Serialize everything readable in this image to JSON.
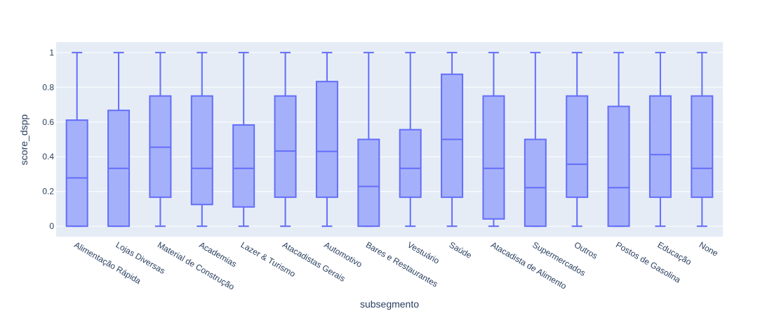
{
  "chart_data": {
    "type": "box",
    "xlabel": "subsegmento",
    "ylabel": "score_dspp",
    "ylim": [
      -0.06,
      1.06
    ],
    "yticks": [
      0,
      0.2,
      0.4,
      0.6,
      0.8,
      1
    ],
    "ytick_labels": [
      "0",
      "0.2",
      "0.4",
      "0.6",
      "0.8",
      "1"
    ],
    "grid": true,
    "colors": {
      "plot_bg": "#e5ecf6",
      "grid": "#ffffff",
      "box_fill": "#a5b0fa",
      "box_line": "#636efa",
      "text": "#2a3f5f"
    },
    "categories": [
      "Alimentação Rápida",
      "Lojas Diversas",
      "Material de Construção",
      "Academias",
      "Lazer & Turismo",
      "Atacadistas Gerais",
      "Automotivo",
      "Bares e Restaurantes",
      "Vestuário",
      "Saúde",
      "Atacadista de Alimento",
      "Supermercados",
      "Outros",
      "Postos de Gasolina",
      "Educação",
      "None"
    ],
    "boxes": [
      {
        "min": 0,
        "q1": 0,
        "median": 0.278,
        "q3": 0.611,
        "max": 1
      },
      {
        "min": 0,
        "q1": 0,
        "median": 0.333,
        "q3": 0.667,
        "max": 1
      },
      {
        "min": 0,
        "q1": 0.167,
        "median": 0.455,
        "q3": 0.75,
        "max": 1
      },
      {
        "min": 0,
        "q1": 0.125,
        "median": 0.333,
        "q3": 0.75,
        "max": 1
      },
      {
        "min": 0,
        "q1": 0.111,
        "median": 0.333,
        "q3": 0.583,
        "max": 1
      },
      {
        "min": 0,
        "q1": 0.167,
        "median": 0.433,
        "q3": 0.75,
        "max": 1
      },
      {
        "min": 0,
        "q1": 0.167,
        "median": 0.431,
        "q3": 0.833,
        "max": 1
      },
      {
        "min": 0,
        "q1": 0,
        "median": 0.229,
        "q3": 0.5,
        "max": 1
      },
      {
        "min": 0,
        "q1": 0.167,
        "median": 0.333,
        "q3": 0.556,
        "max": 1
      },
      {
        "min": 0,
        "q1": 0.167,
        "median": 0.5,
        "q3": 0.875,
        "max": 1
      },
      {
        "min": 0,
        "q1": 0.042,
        "median": 0.333,
        "q3": 0.75,
        "max": 1
      },
      {
        "min": 0,
        "q1": 0,
        "median": 0.222,
        "q3": 0.5,
        "max": 1
      },
      {
        "min": 0,
        "q1": 0.167,
        "median": 0.357,
        "q3": 0.75,
        "max": 1
      },
      {
        "min": 0,
        "q1": 0,
        "median": 0.222,
        "q3": 0.69,
        "max": 1
      },
      {
        "min": 0,
        "q1": 0.167,
        "median": 0.412,
        "q3": 0.75,
        "max": 1
      },
      {
        "min": 0,
        "q1": 0.167,
        "median": 0.333,
        "q3": 0.75,
        "max": 1
      }
    ]
  }
}
